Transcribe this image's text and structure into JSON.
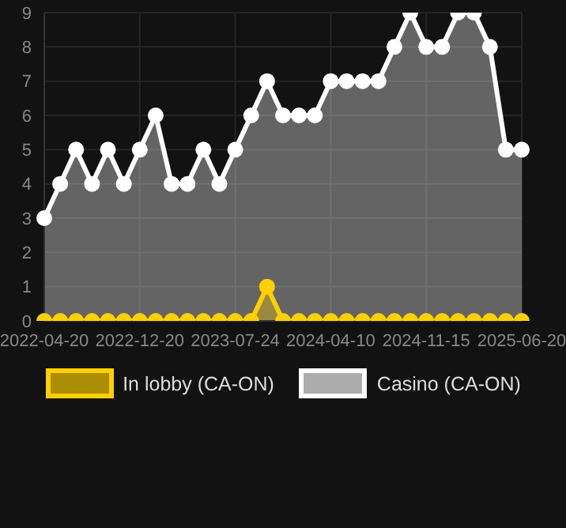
{
  "chart_data": {
    "type": "area",
    "categories": [
      "2022-04-20",
      null,
      null,
      null,
      null,
      null,
      "2022-12-20",
      null,
      null,
      null,
      null,
      null,
      "2023-07-24",
      null,
      null,
      null,
      null,
      null,
      "2024-04-10",
      null,
      null,
      null,
      null,
      null,
      "2024-11-15",
      null,
      null,
      null,
      null,
      null,
      "2025-06-20"
    ],
    "series": [
      {
        "name": "In lobby (CA-ON)",
        "color": "#ffd000",
        "values": [
          0,
          0,
          0,
          0,
          0,
          0,
          0,
          0,
          0,
          0,
          0,
          0,
          0,
          0,
          1,
          0,
          0,
          0,
          0,
          0,
          0,
          0,
          0,
          0,
          0,
          0,
          0,
          0,
          0,
          0,
          0
        ]
      },
      {
        "name": "Casino (CA-ON)",
        "color": "#ffffff",
        "values": [
          3,
          4,
          5,
          4,
          5,
          4,
          5,
          6,
          4,
          4,
          5,
          4,
          5,
          6,
          7,
          6,
          6,
          6,
          7,
          7,
          7,
          7,
          8,
          9,
          8,
          8,
          9,
          9,
          8,
          5,
          5
        ]
      }
    ],
    "ylim": [
      0,
      9
    ],
    "yticks": [
      0,
      1,
      2,
      3,
      4,
      5,
      6,
      7,
      8,
      9
    ],
    "grid": true,
    "legend": "bottom",
    "marker": "circle",
    "line_style": "solid"
  }
}
